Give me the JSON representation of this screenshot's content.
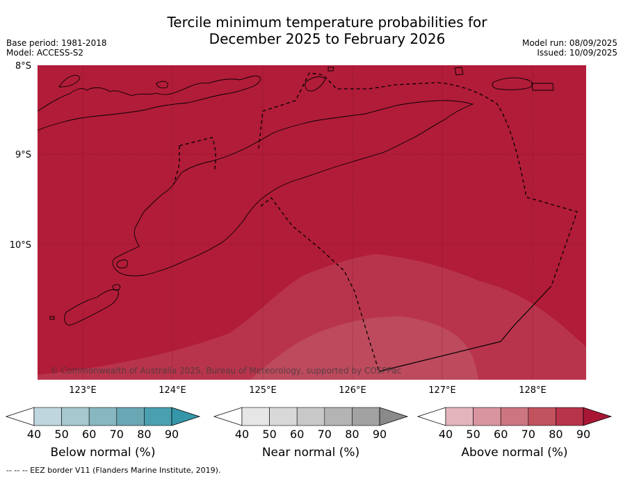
{
  "title_line1": "Tercile minimum temperature probabilities for",
  "title_line2": "December 2025 to February 2026",
  "meta_left": {
    "base_period": "Base period: 1981-2018",
    "model": "Model: ACCESS-S2"
  },
  "meta_right": {
    "model_run": "Model run: 08/09/2025",
    "issued": "Issued: 10/09/2025"
  },
  "map": {
    "lat_labels": [
      "8°S",
      "9°S",
      "10°S"
    ],
    "lon_labels": [
      "123°E",
      "124°E",
      "125°E",
      "126°E",
      "127°E",
      "128°E"
    ],
    "copyright": "© Commonwealth of Australia 2025, Bureau of Meteorology, supported by COSPPac",
    "fill_colors": {
      "above_90": "#b11c38",
      "above_80": "#b8344c",
      "above_70": "#bd4a5d"
    }
  },
  "colorbars": [
    {
      "label": "Below normal (%)",
      "ticks": [
        "40",
        "50",
        "60",
        "70",
        "80",
        "90"
      ],
      "colors": [
        "#bfd6de",
        "#a6c8cf",
        "#88b7c0",
        "#6aa7b4",
        "#4ba0b0",
        "#3596a9"
      ]
    },
    {
      "label": "Near normal (%)",
      "ticks": [
        "40",
        "50",
        "60",
        "70",
        "80",
        "90"
      ],
      "colors": [
        "#e6e6e6",
        "#d8d8d8",
        "#c8c8c8",
        "#b4b4b4",
        "#a2a2a2",
        "#8a8a8a"
      ]
    },
    {
      "label": "Above normal (%)",
      "ticks": [
        "40",
        "50",
        "60",
        "70",
        "80",
        "90"
      ],
      "colors": [
        "#e2b5bd",
        "#d9959f",
        "#cb7681",
        "#c1535f",
        "#b8344a",
        "#a71735"
      ]
    }
  ],
  "footnote": "--  --  -- EEZ border V11 (Flanders Marine Institute, 2019)."
}
